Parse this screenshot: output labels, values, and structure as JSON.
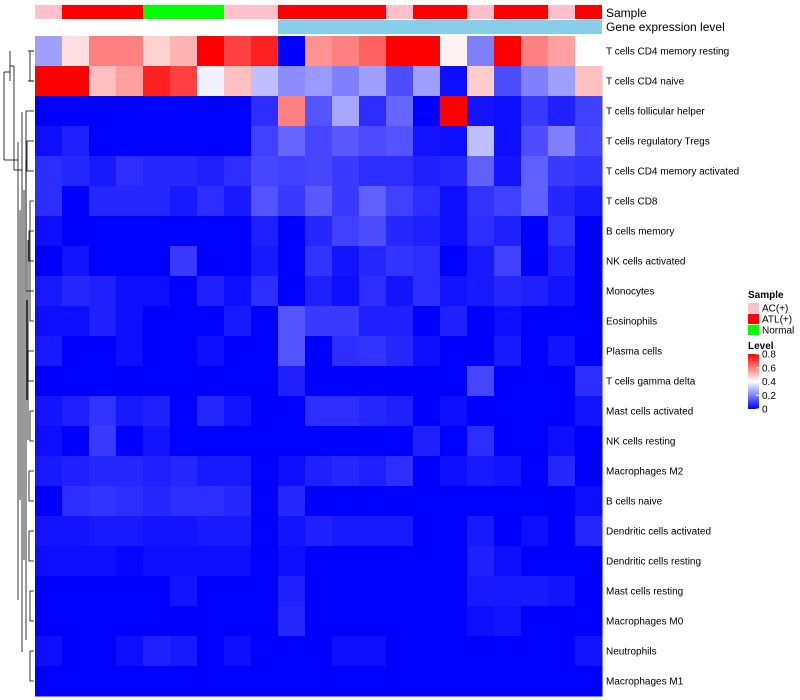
{
  "chart_data": {
    "type": "heatmap",
    "title": "",
    "annotation_labels": {
      "sample": "Sample",
      "level": "Gene expression level"
    },
    "sample_groups": [
      "AC",
      "ATL",
      "ATL",
      "ATL",
      "Normal",
      "Normal",
      "Normal",
      "AC",
      "AC",
      "ATL",
      "ATL",
      "ATL",
      "ATL",
      "AC",
      "ATL",
      "ATL",
      "AC",
      "ATL",
      "ATL",
      "AC",
      "ATL"
    ],
    "level_colors": [
      "#ffffff",
      "#ffffff",
      "#ffffff",
      "#ffffff",
      "#ffffff",
      "#ffffff",
      "#ffffff",
      "#ffffff",
      "#ffffff",
      "#87ceeb",
      "#87ceeb",
      "#87ceeb",
      "#87ceeb",
      "#87ceeb",
      "#87ceeb",
      "#87ceeb",
      "#87ceeb",
      "#87ceeb",
      "#87ceeb",
      "#87ceeb",
      "#87ceeb"
    ],
    "rows": [
      "T cells CD4 memory resting",
      "T cells CD4 naive",
      "T cells follicular helper",
      "T cells regulatory  Tregs",
      "T cells CD4 memory activated",
      "T cells CD8",
      "B cells memory",
      "NK cells activated",
      "Monocytes",
      "Eosinophils",
      "Plasma cells",
      "T cells gamma delta",
      "Mast cells activated",
      "NK cells resting",
      "Macrophages M2",
      "B cells naive",
      "Dendritic cells activated",
      "Dendritic cells resting",
      "Mast cells resting",
      "Macrophages M0",
      "Neutrophils",
      "Macrophages M1"
    ],
    "values": [
      [
        0.25,
        0.45,
        0.6,
        0.6,
        0.47,
        0.52,
        0.8,
        0.7,
        0.75,
        0.0,
        0.57,
        0.6,
        0.65,
        0.8,
        0.8,
        0.42,
        0.2,
        0.8,
        0.6,
        0.55,
        0.4
      ],
      [
        0.8,
        0.8,
        0.5,
        0.55,
        0.75,
        0.7,
        0.38,
        0.5,
        0.3,
        0.22,
        0.24,
        0.2,
        0.25,
        0.12,
        0.25,
        0.02,
        0.48,
        0.12,
        0.2,
        0.25,
        0.5
      ],
      [
        0.0,
        0.0,
        0.0,
        0.0,
        0.0,
        0.0,
        0.0,
        0.0,
        0.07,
        0.6,
        0.13,
        0.26,
        0.07,
        0.16,
        0.0,
        0.8,
        0.03,
        0.02,
        0.09,
        0.05,
        0.1
      ],
      [
        0.02,
        0.05,
        0.0,
        0.0,
        0.0,
        0.0,
        0.0,
        0.0,
        0.1,
        0.16,
        0.11,
        0.14,
        0.12,
        0.13,
        0.03,
        0.02,
        0.3,
        0.02,
        0.12,
        0.2,
        0.11
      ],
      [
        0.07,
        0.06,
        0.04,
        0.07,
        0.06,
        0.06,
        0.05,
        0.07,
        0.11,
        0.1,
        0.11,
        0.09,
        0.07,
        0.07,
        0.05,
        0.06,
        0.15,
        0.03,
        0.15,
        0.09,
        0.08
      ],
      [
        0.07,
        0.0,
        0.06,
        0.06,
        0.06,
        0.04,
        0.07,
        0.04,
        0.13,
        0.09,
        0.14,
        0.09,
        0.15,
        0.1,
        0.07,
        0.02,
        0.08,
        0.1,
        0.15,
        0.06,
        0.04
      ],
      [
        0.02,
        0.0,
        0.0,
        0.0,
        0.0,
        0.0,
        0.0,
        0.0,
        0.05,
        0.0,
        0.06,
        0.1,
        0.12,
        0.06,
        0.05,
        0.02,
        0.07,
        0.05,
        0.0,
        0.08,
        0.0
      ],
      [
        0.0,
        0.03,
        0.0,
        0.0,
        0.0,
        0.09,
        0.0,
        0.0,
        0.04,
        0.0,
        0.08,
        0.03,
        0.06,
        0.08,
        0.07,
        0.0,
        0.04,
        0.1,
        0.0,
        0.05,
        0.0
      ],
      [
        0.04,
        0.06,
        0.05,
        0.02,
        0.02,
        0.0,
        0.05,
        0.02,
        0.07,
        0.0,
        0.05,
        0.02,
        0.07,
        0.03,
        0.07,
        0.03,
        0.04,
        0.06,
        0.05,
        0.03,
        0.0
      ],
      [
        0.02,
        0.02,
        0.05,
        0.02,
        0.0,
        0.0,
        0.0,
        0.04,
        0.0,
        0.13,
        0.09,
        0.09,
        0.05,
        0.05,
        0.0,
        0.05,
        0.0,
        0.02,
        0.0,
        0.0,
        0.0
      ],
      [
        0.04,
        0.0,
        0.0,
        0.02,
        0.0,
        0.0,
        0.02,
        0.0,
        0.0,
        0.13,
        0.0,
        0.07,
        0.08,
        0.06,
        0.02,
        0.0,
        0.0,
        0.04,
        0.0,
        0.03,
        0.0
      ],
      [
        0.0,
        0.0,
        0.0,
        0.0,
        0.0,
        0.0,
        0.0,
        0.0,
        0.0,
        0.05,
        0.0,
        0.0,
        0.0,
        0.0,
        0.0,
        0.0,
        0.11,
        0.0,
        0.0,
        0.0,
        0.07
      ],
      [
        0.03,
        0.05,
        0.08,
        0.04,
        0.05,
        0.0,
        0.06,
        0.03,
        0.0,
        0.0,
        0.07,
        0.07,
        0.06,
        0.05,
        0.0,
        0.02,
        0.0,
        0.0,
        0.0,
        0.0,
        0.03
      ],
      [
        0.02,
        0.0,
        0.09,
        0.0,
        0.03,
        0.0,
        0.0,
        0.0,
        0.0,
        0.0,
        0.0,
        0.0,
        0.0,
        0.0,
        0.05,
        0.0,
        0.07,
        0.0,
        0.0,
        0.02,
        0.0
      ],
      [
        0.04,
        0.05,
        0.06,
        0.06,
        0.05,
        0.06,
        0.04,
        0.04,
        0.0,
        0.02,
        0.05,
        0.06,
        0.05,
        0.07,
        0.0,
        0.02,
        0.04,
        0.03,
        0.0,
        0.06,
        0.0
      ],
      [
        0.0,
        0.07,
        0.08,
        0.07,
        0.06,
        0.07,
        0.07,
        0.06,
        0.0,
        0.06,
        0.0,
        0.0,
        0.0,
        0.0,
        0.0,
        0.0,
        0.0,
        0.0,
        0.0,
        0.0,
        0.02
      ],
      [
        0.03,
        0.03,
        0.04,
        0.04,
        0.03,
        0.03,
        0.04,
        0.04,
        0.0,
        0.03,
        0.05,
        0.04,
        0.04,
        0.04,
        0.0,
        0.0,
        0.04,
        0.0,
        0.02,
        0.0,
        0.06
      ],
      [
        0.02,
        0.02,
        0.02,
        0.01,
        0.02,
        0.02,
        0.02,
        0.02,
        0.0,
        0.02,
        0.0,
        0.0,
        0.0,
        0.0,
        0.0,
        0.0,
        0.05,
        0.02,
        0.0,
        0.0,
        0.0
      ],
      [
        0.0,
        0.0,
        0.0,
        0.0,
        0.0,
        0.03,
        0.0,
        0.0,
        0.0,
        0.05,
        0.0,
        0.0,
        0.0,
        0.0,
        0.0,
        0.0,
        0.04,
        0.04,
        0.04,
        0.03,
        0.0
      ],
      [
        0.0,
        0.0,
        0.0,
        0.0,
        0.0,
        0.0,
        0.0,
        0.0,
        0.0,
        0.06,
        0.0,
        0.0,
        0.0,
        0.0,
        0.0,
        0.0,
        0.02,
        0.03,
        0.0,
        0.0,
        0.0
      ],
      [
        0.02,
        0.0,
        0.0,
        0.02,
        0.05,
        0.04,
        0.0,
        0.02,
        0.0,
        0.0,
        0.0,
        0.02,
        0.02,
        0.0,
        0.0,
        0.0,
        0.0,
        0.0,
        0.0,
        0.0,
        0.03
      ],
      [
        0.0,
        0.0,
        0.0,
        0.0,
        0.0,
        0.0,
        0.0,
        0.0,
        0.0,
        0.0,
        0.0,
        0.0,
        0.0,
        0.0,
        0.0,
        0.0,
        0.0,
        0.0,
        0.0,
        0.0,
        0.0
      ]
    ],
    "color_scale": {
      "low": "#0000ff",
      "mid": "#ffffff",
      "high": "#ff0000",
      "min": 0,
      "mid_value": 0.4,
      "max": 0.8
    },
    "legend_sample": {
      "title": "Sample",
      "items": [
        {
          "key": "AC",
          "label": "AC(+)",
          "color": "#ffc0cb"
        },
        {
          "key": "ATL",
          "label": "ATL(+)",
          "color": "#ff0000"
        },
        {
          "key": "Normal",
          "label": "Normal",
          "color": "#00ff00"
        }
      ]
    },
    "legend_level": {
      "title": "Level",
      "ticks": [
        "0.8",
        "0.6",
        "0.4",
        "0.2",
        "0"
      ],
      "tick_values": [
        0.8,
        0.6,
        0.4,
        0.2,
        0
      ]
    },
    "dendrogram": [
      {
        "left": 0,
        "right": 1
      },
      {
        "left": 5,
        "right": 9
      },
      {
        "left": 12,
        "right": 13
      },
      {
        "left": 18,
        "right": 19
      },
      {
        "left": 20,
        "right": 21
      },
      {
        "left": 6,
        "right": 7
      },
      {
        "left": 14,
        "right": 15
      },
      {
        "left": 16,
        "right": 17
      },
      {
        "left": 10,
        "right": 11
      },
      {
        "left": 3,
        "right": 4
      },
      {
        "left": 2,
        "right": 8
      }
    ]
  }
}
